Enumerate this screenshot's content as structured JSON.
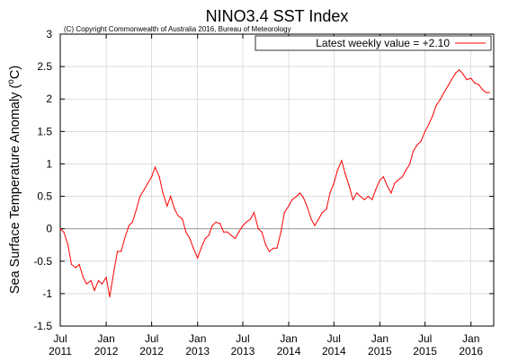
{
  "chart_data": {
    "type": "line",
    "title": "NINO3.4 SST Index",
    "subtitle": "(C) Copyright Commonwealth of Australia 2016, Bureau of Meteorology",
    "ylabel_main": "Sea Surface Temperature Anomaly (",
    "ylabel_sup": "o",
    "ylabel_unit": "C)",
    "legend_label": "Latest weekly value = +2.10",
    "legend_position": "top-right",
    "grid": true,
    "ylim": [
      -1.5,
      3
    ],
    "y_ticks": [
      "-1.5",
      "-1",
      "-0.5",
      "0",
      "0.5",
      "1",
      "1.5",
      "2",
      "2.5",
      "3"
    ],
    "x_range": [
      "2011-07-01",
      "2016-04-01"
    ],
    "x_ticks": [
      {
        "date": "2011-07-01",
        "line1": "Jul",
        "line2": "2011"
      },
      {
        "date": "2012-01-01",
        "line1": "Jan",
        "line2": "2012"
      },
      {
        "date": "2012-07-01",
        "line1": "Jul",
        "line2": "2012"
      },
      {
        "date": "2013-01-01",
        "line1": "Jan",
        "line2": "2013"
      },
      {
        "date": "2013-07-01",
        "line1": "Jul",
        "line2": "2013"
      },
      {
        "date": "2014-01-01",
        "line1": "Jan",
        "line2": "2014"
      },
      {
        "date": "2014-07-01",
        "line1": "Jul",
        "line2": "2014"
      },
      {
        "date": "2015-01-01",
        "line1": "Jan",
        "line2": "2015"
      },
      {
        "date": "2015-07-01",
        "line1": "Jul",
        "line2": "2015"
      },
      {
        "date": "2016-01-01",
        "line1": "Jan",
        "line2": "2016"
      }
    ],
    "series": [
      {
        "color": "#ff0000",
        "x": [
          "2011-07-01",
          "2011-07-15",
          "2011-08-01",
          "2011-08-15",
          "2011-09-01",
          "2011-09-15",
          "2011-10-01",
          "2011-10-15",
          "2011-11-01",
          "2011-11-15",
          "2011-12-01",
          "2011-12-15",
          "2012-01-01",
          "2012-01-15",
          "2012-02-01",
          "2012-02-15",
          "2012-03-01",
          "2012-03-15",
          "2012-04-01",
          "2012-04-15",
          "2012-05-01",
          "2012-05-15",
          "2012-06-01",
          "2012-06-15",
          "2012-07-01",
          "2012-07-15",
          "2012-08-01",
          "2012-08-15",
          "2012-09-01",
          "2012-09-15",
          "2012-10-01",
          "2012-10-15",
          "2012-11-01",
          "2012-11-15",
          "2012-12-01",
          "2012-12-15",
          "2013-01-01",
          "2013-01-15",
          "2013-02-01",
          "2013-02-15",
          "2013-03-01",
          "2013-03-15",
          "2013-04-01",
          "2013-04-15",
          "2013-05-01",
          "2013-05-15",
          "2013-06-01",
          "2013-06-15",
          "2013-07-01",
          "2013-07-15",
          "2013-08-01",
          "2013-08-15",
          "2013-09-01",
          "2013-09-15",
          "2013-10-01",
          "2013-10-15",
          "2013-11-01",
          "2013-11-15",
          "2013-12-01",
          "2013-12-15",
          "2014-01-01",
          "2014-01-15",
          "2014-02-01",
          "2014-02-15",
          "2014-03-01",
          "2014-03-15",
          "2014-04-01",
          "2014-04-15",
          "2014-05-01",
          "2014-05-15",
          "2014-06-01",
          "2014-06-15",
          "2014-07-01",
          "2014-07-15",
          "2014-08-01",
          "2014-08-15",
          "2014-09-01",
          "2014-09-15",
          "2014-10-01",
          "2014-10-15",
          "2014-11-01",
          "2014-11-15",
          "2014-12-01",
          "2014-12-15",
          "2015-01-01",
          "2015-01-15",
          "2015-02-01",
          "2015-02-15",
          "2015-03-01",
          "2015-03-15",
          "2015-04-01",
          "2015-04-15",
          "2015-05-01",
          "2015-05-15",
          "2015-06-01",
          "2015-06-15",
          "2015-07-01",
          "2015-07-15",
          "2015-08-01",
          "2015-08-15",
          "2015-09-01",
          "2015-09-15",
          "2015-10-01",
          "2015-10-15",
          "2015-11-01",
          "2015-11-15",
          "2015-12-01",
          "2015-12-15",
          "2016-01-01",
          "2016-01-15",
          "2016-02-01",
          "2016-02-15",
          "2016-03-01",
          "2016-03-15"
        ],
        "y": [
          0,
          -0.05,
          -0.25,
          -0.55,
          -0.6,
          -0.55,
          -0.75,
          -0.85,
          -0.8,
          -0.95,
          -0.8,
          -0.85,
          -0.75,
          -1.05,
          -0.65,
          -0.35,
          -0.35,
          -0.15,
          0.05,
          0.1,
          0.3,
          0.5,
          0.6,
          0.7,
          0.8,
          0.95,
          0.8,
          0.55,
          0.35,
          0.5,
          0.3,
          0.2,
          0.15,
          -0.05,
          -0.15,
          -0.3,
          -0.45,
          -0.3,
          -0.15,
          -0.1,
          0.05,
          0.1,
          0.08,
          -0.05,
          -0.05,
          -0.1,
          -0.15,
          -0.05,
          0.05,
          0.1,
          0.15,
          0.25,
          0.0,
          -0.05,
          -0.25,
          -0.35,
          -0.3,
          -0.3,
          -0.05,
          0.25,
          0.35,
          0.45,
          0.5,
          0.55,
          0.48,
          0.35,
          0.15,
          0.05,
          0.15,
          0.25,
          0.3,
          0.55,
          0.7,
          0.9,
          1.05,
          0.85,
          0.65,
          0.45,
          0.55,
          0.5,
          0.45,
          0.5,
          0.45,
          0.6,
          0.75,
          0.8,
          0.65,
          0.55,
          0.7,
          0.75,
          0.8,
          0.9,
          1.0,
          1.2,
          1.3,
          1.35,
          1.5,
          1.6,
          1.75,
          1.9,
          2.0,
          2.1,
          2.2,
          2.3,
          2.4,
          2.45,
          2.38,
          2.3,
          2.32,
          2.25,
          2.22,
          2.15,
          2.1,
          2.1
        ]
      }
    ]
  }
}
